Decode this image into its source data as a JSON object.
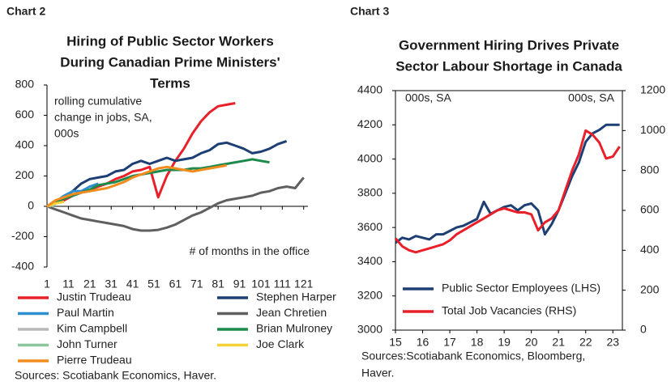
{
  "chart_data": [
    {
      "type": "line",
      "label": "Chart 2",
      "title": [
        "Hiring of Public Sector Workers",
        "During Canadian Prime Ministers'",
        "Terms"
      ],
      "annotation": [
        "rolling cumulative",
        "change in jobs, SA,",
        "000s"
      ],
      "x_label": "# of months in the office",
      "source": [
        "Sources: Scotiabank Economics, Haver."
      ],
      "x": [
        1,
        5,
        9,
        13,
        17,
        21,
        25,
        29,
        33,
        37,
        41,
        45,
        49,
        53,
        57,
        61,
        65,
        69,
        73,
        77,
        81,
        85,
        89,
        93,
        97,
        101,
        105,
        109,
        113,
        117,
        121
      ],
      "xlim": [
        1,
        123
      ],
      "xticks": [
        1,
        11,
        21,
        31,
        41,
        51,
        61,
        71,
        81,
        91,
        101,
        111,
        121
      ],
      "ylim": [
        -400,
        800
      ],
      "yticks": [
        -400,
        -200,
        0,
        200,
        400,
        600,
        800
      ],
      "series": [
        {
          "name": "Justin Trudeau",
          "color": "#e8202a",
          "values": [
            0,
            20,
            40,
            70,
            90,
            110,
            130,
            150,
            180,
            200,
            230,
            240,
            260,
            60,
            200,
            300,
            380,
            480,
            560,
            620,
            660,
            670,
            680,
            null,
            null,
            null,
            null,
            null,
            null,
            null,
            null
          ]
        },
        {
          "name": "Stephen Harper",
          "color": "#1d3f73",
          "values": [
            0,
            30,
            60,
            100,
            150,
            180,
            190,
            200,
            230,
            240,
            280,
            300,
            280,
            300,
            320,
            300,
            310,
            320,
            350,
            370,
            410,
            420,
            400,
            380,
            350,
            360,
            380,
            410,
            430,
            null,
            null
          ]
        },
        {
          "name": "Paul Martin",
          "color": "#2e8fcf",
          "values": [
            0,
            30,
            70,
            100,
            100,
            130,
            150,
            null,
            null,
            null,
            null,
            null,
            null,
            null,
            null,
            null,
            null,
            null,
            null,
            null,
            null,
            null,
            null,
            null,
            null,
            null,
            null,
            null,
            null,
            null,
            null
          ]
        },
        {
          "name": "Jean Chretien",
          "color": "#5f5f5f",
          "values": [
            0,
            -20,
            -40,
            -60,
            -80,
            -90,
            -100,
            -110,
            -120,
            -130,
            -150,
            -160,
            -160,
            -155,
            -140,
            -120,
            -90,
            -60,
            -40,
            -10,
            20,
            40,
            50,
            60,
            70,
            90,
            100,
            120,
            130,
            120,
            190
          ]
        },
        {
          "name": "Kim Campbell",
          "color": "#b8b8b8",
          "values": [
            0,
            10,
            null,
            null,
            null,
            null,
            null,
            null,
            null,
            null,
            null,
            null,
            null,
            null,
            null,
            null,
            null,
            null,
            null,
            null,
            null,
            null,
            null,
            null,
            null,
            null,
            null,
            null,
            null,
            null,
            null
          ]
        },
        {
          "name": "Brian Mulroney",
          "color": "#1e8a4c",
          "values": [
            0,
            30,
            50,
            70,
            90,
            110,
            140,
            150,
            160,
            180,
            200,
            210,
            220,
            230,
            240,
            240,
            240,
            250,
            250,
            260,
            270,
            280,
            290,
            300,
            310,
            300,
            290,
            null,
            null,
            null,
            null
          ]
        },
        {
          "name": "John Turner",
          "color": "#8cc79e",
          "values": [
            0,
            10,
            null,
            null,
            null,
            null,
            null,
            null,
            null,
            null,
            null,
            null,
            null,
            null,
            null,
            null,
            null,
            null,
            null,
            null,
            null,
            null,
            null,
            null,
            null,
            null,
            null,
            null,
            null,
            null,
            null
          ]
        },
        {
          "name": "Joe Clark",
          "color": "#f5d23a",
          "values": [
            0,
            20,
            30,
            null,
            null,
            null,
            null,
            null,
            null,
            null,
            null,
            null,
            null,
            null,
            null,
            null,
            null,
            null,
            null,
            null,
            null,
            null,
            null,
            null,
            null,
            null,
            null,
            null,
            null,
            null,
            null
          ]
        },
        {
          "name": "Pierre Trudeau",
          "color": "#f28c1e",
          "values": [
            0,
            40,
            60,
            80,
            90,
            100,
            110,
            120,
            140,
            160,
            190,
            210,
            230,
            250,
            260,
            250,
            240,
            230,
            240,
            250,
            260,
            270,
            null,
            null,
            null,
            null,
            null,
            null,
            null,
            null,
            null
          ]
        }
      ]
    },
    {
      "type": "line",
      "label": "Chart 3",
      "title": [
        "Government Hiring Drives Private",
        "Sector Labour Shortage in Canada"
      ],
      "y_label": "000s, SA",
      "y2_label": "000s, SA",
      "source": [
        "Sources:Scotiabank Economics, Bloomberg,",
        "Haver."
      ],
      "x": [
        15,
        15.25,
        15.5,
        15.75,
        16,
        16.25,
        16.5,
        16.75,
        17,
        17.25,
        17.5,
        17.75,
        18,
        18.25,
        18.5,
        18.75,
        19,
        19.25,
        19.5,
        19.75,
        20,
        20.25,
        20.5,
        20.75,
        21,
        21.25,
        21.5,
        21.75,
        22,
        22.25,
        22.5,
        22.75,
        23,
        23.25
      ],
      "xlim": [
        15,
        23.35
      ],
      "xticks": [
        15,
        16,
        17,
        18,
        19,
        20,
        21,
        22,
        23
      ],
      "ylim": [
        3000,
        4400
      ],
      "yticks": [
        3000,
        3200,
        3400,
        3600,
        3800,
        4000,
        4200,
        4400
      ],
      "y2lim": [
        0,
        1200
      ],
      "y2ticks": [
        0,
        200,
        400,
        600,
        800,
        1000,
        1200
      ],
      "series": [
        {
          "name": "Public Sector Employees (LHS)",
          "color": "#1d3f73",
          "values": [
            3510,
            3540,
            3530,
            3550,
            3540,
            3530,
            3560,
            3560,
            3580,
            3600,
            3610,
            3630,
            3650,
            3750,
            3680,
            3700,
            3720,
            3730,
            3700,
            3730,
            3740,
            3700,
            3560,
            3620,
            3700,
            3800,
            3900,
            3980,
            4100,
            4150,
            4170,
            4200,
            4200,
            4200
          ]
        },
        {
          "name": "Total Job Vacancies (RHS)",
          "color": "#e8202a",
          "axis": "y2",
          "values": [
            460,
            420,
            400,
            390,
            400,
            410,
            420,
            430,
            450,
            480,
            500,
            520,
            540,
            560,
            580,
            600,
            610,
            600,
            590,
            590,
            580,
            500,
            540,
            560,
            600,
            700,
            800,
            880,
            1000,
            980,
            940,
            860,
            870,
            920
          ]
        }
      ]
    }
  ]
}
